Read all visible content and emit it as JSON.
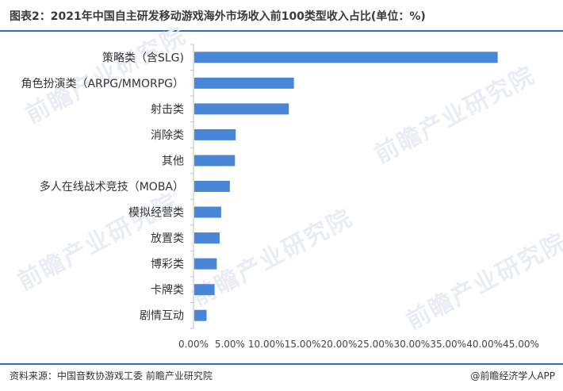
{
  "title": "图表2：2021年中国自主研发移动游戏海外市场收入前100类型收入占比(单位：%)",
  "source": "资料来源：中国音数协游戏工委 前瞻产业研究院",
  "brand": "@前瞻经济学人APP",
  "watermark": "前瞻产业研究院",
  "colors": {
    "bar": "#4a86d8",
    "axis": "#bfbfbf",
    "rule": "#2f6ec4"
  },
  "chart_data": {
    "type": "bar",
    "orientation": "horizontal",
    "categories": [
      "策略类（含SLG)",
      "角色扮演类（ARPG/MMORPG）",
      "射击类",
      "消除类",
      "其他",
      "多人在线战术竞技（MOBA）",
      "模拟经营类",
      "放置类",
      "博彩类",
      "卡牌类",
      "剧情互动"
    ],
    "values": [
      41.8,
      13.8,
      13.1,
      5.8,
      5.7,
      5.0,
      3.8,
      3.6,
      3.2,
      2.9,
      1.8
    ],
    "xlim": [
      0,
      45
    ],
    "xticks": [
      "0.00%",
      "5.00%",
      "10.00%",
      "15.00%",
      "20.00%",
      "25.00%",
      "30.00%",
      "35.00%",
      "40.00%",
      "45.00%"
    ],
    "xtick_values": [
      0,
      5,
      10,
      15,
      20,
      25,
      30,
      35,
      40,
      45
    ],
    "grid": false,
    "legend": "none"
  }
}
